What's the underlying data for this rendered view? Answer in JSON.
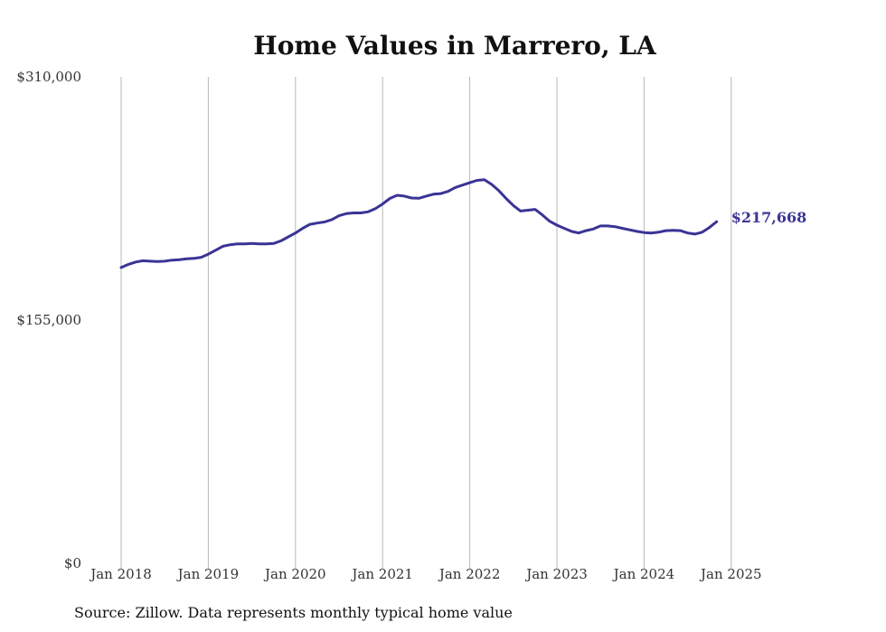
{
  "chart_data": {
    "type": "line",
    "title": "Home Values in Marrero, LA",
    "xlabel": "",
    "ylabel": "",
    "ylim": [
      0,
      310000
    ],
    "y_ticks": [
      {
        "value": 0,
        "label": "$0"
      },
      {
        "value": 155000,
        "label": "$155,000"
      },
      {
        "value": 310000,
        "label": "$310,000"
      }
    ],
    "x_start_year": 2018,
    "x_ticks": [
      {
        "year": 2018,
        "label": "Jan 2018"
      },
      {
        "year": 2019,
        "label": "Jan 2019"
      },
      {
        "year": 2020,
        "label": "Jan 2020"
      },
      {
        "year": 2021,
        "label": "Jan 2021"
      },
      {
        "year": 2022,
        "label": "Jan 2022"
      },
      {
        "year": 2023,
        "label": "Jan 2023"
      },
      {
        "year": 2024,
        "label": "Jan 2024"
      },
      {
        "year": 2025,
        "label": "Jan 2025"
      }
    ],
    "grid": "vertical",
    "series": [
      {
        "name": "Typical home value",
        "color": "#3a3496",
        "end_label": "$217,668",
        "values": [
          188500,
          190500,
          192000,
          192800,
          192500,
          192300,
          192500,
          193200,
          193500,
          194000,
          194300,
          195000,
          197000,
          199500,
          202000,
          203000,
          203500,
          203500,
          203800,
          203600,
          203500,
          203800,
          205500,
          208000,
          210500,
          213500,
          216000,
          216800,
          217500,
          219000,
          221500,
          222800,
          223300,
          223300,
          224000,
          226000,
          229000,
          232500,
          234500,
          234000,
          232800,
          232600,
          234000,
          235200,
          235600,
          237000,
          239500,
          241000,
          242500,
          244000,
          244500,
          241500,
          237500,
          232500,
          228000,
          224500,
          225000,
          225500,
          222000,
          218000,
          215500,
          213500,
          211500,
          210500,
          212000,
          213000,
          215000,
          215000,
          214500,
          213500,
          212500,
          211500,
          210800,
          210500,
          211000,
          212000,
          212200,
          212000,
          210500,
          209800,
          211000,
          214000,
          217668
        ]
      }
    ]
  },
  "source_note": "Source: Zillow. Data represents monthly typical home value"
}
